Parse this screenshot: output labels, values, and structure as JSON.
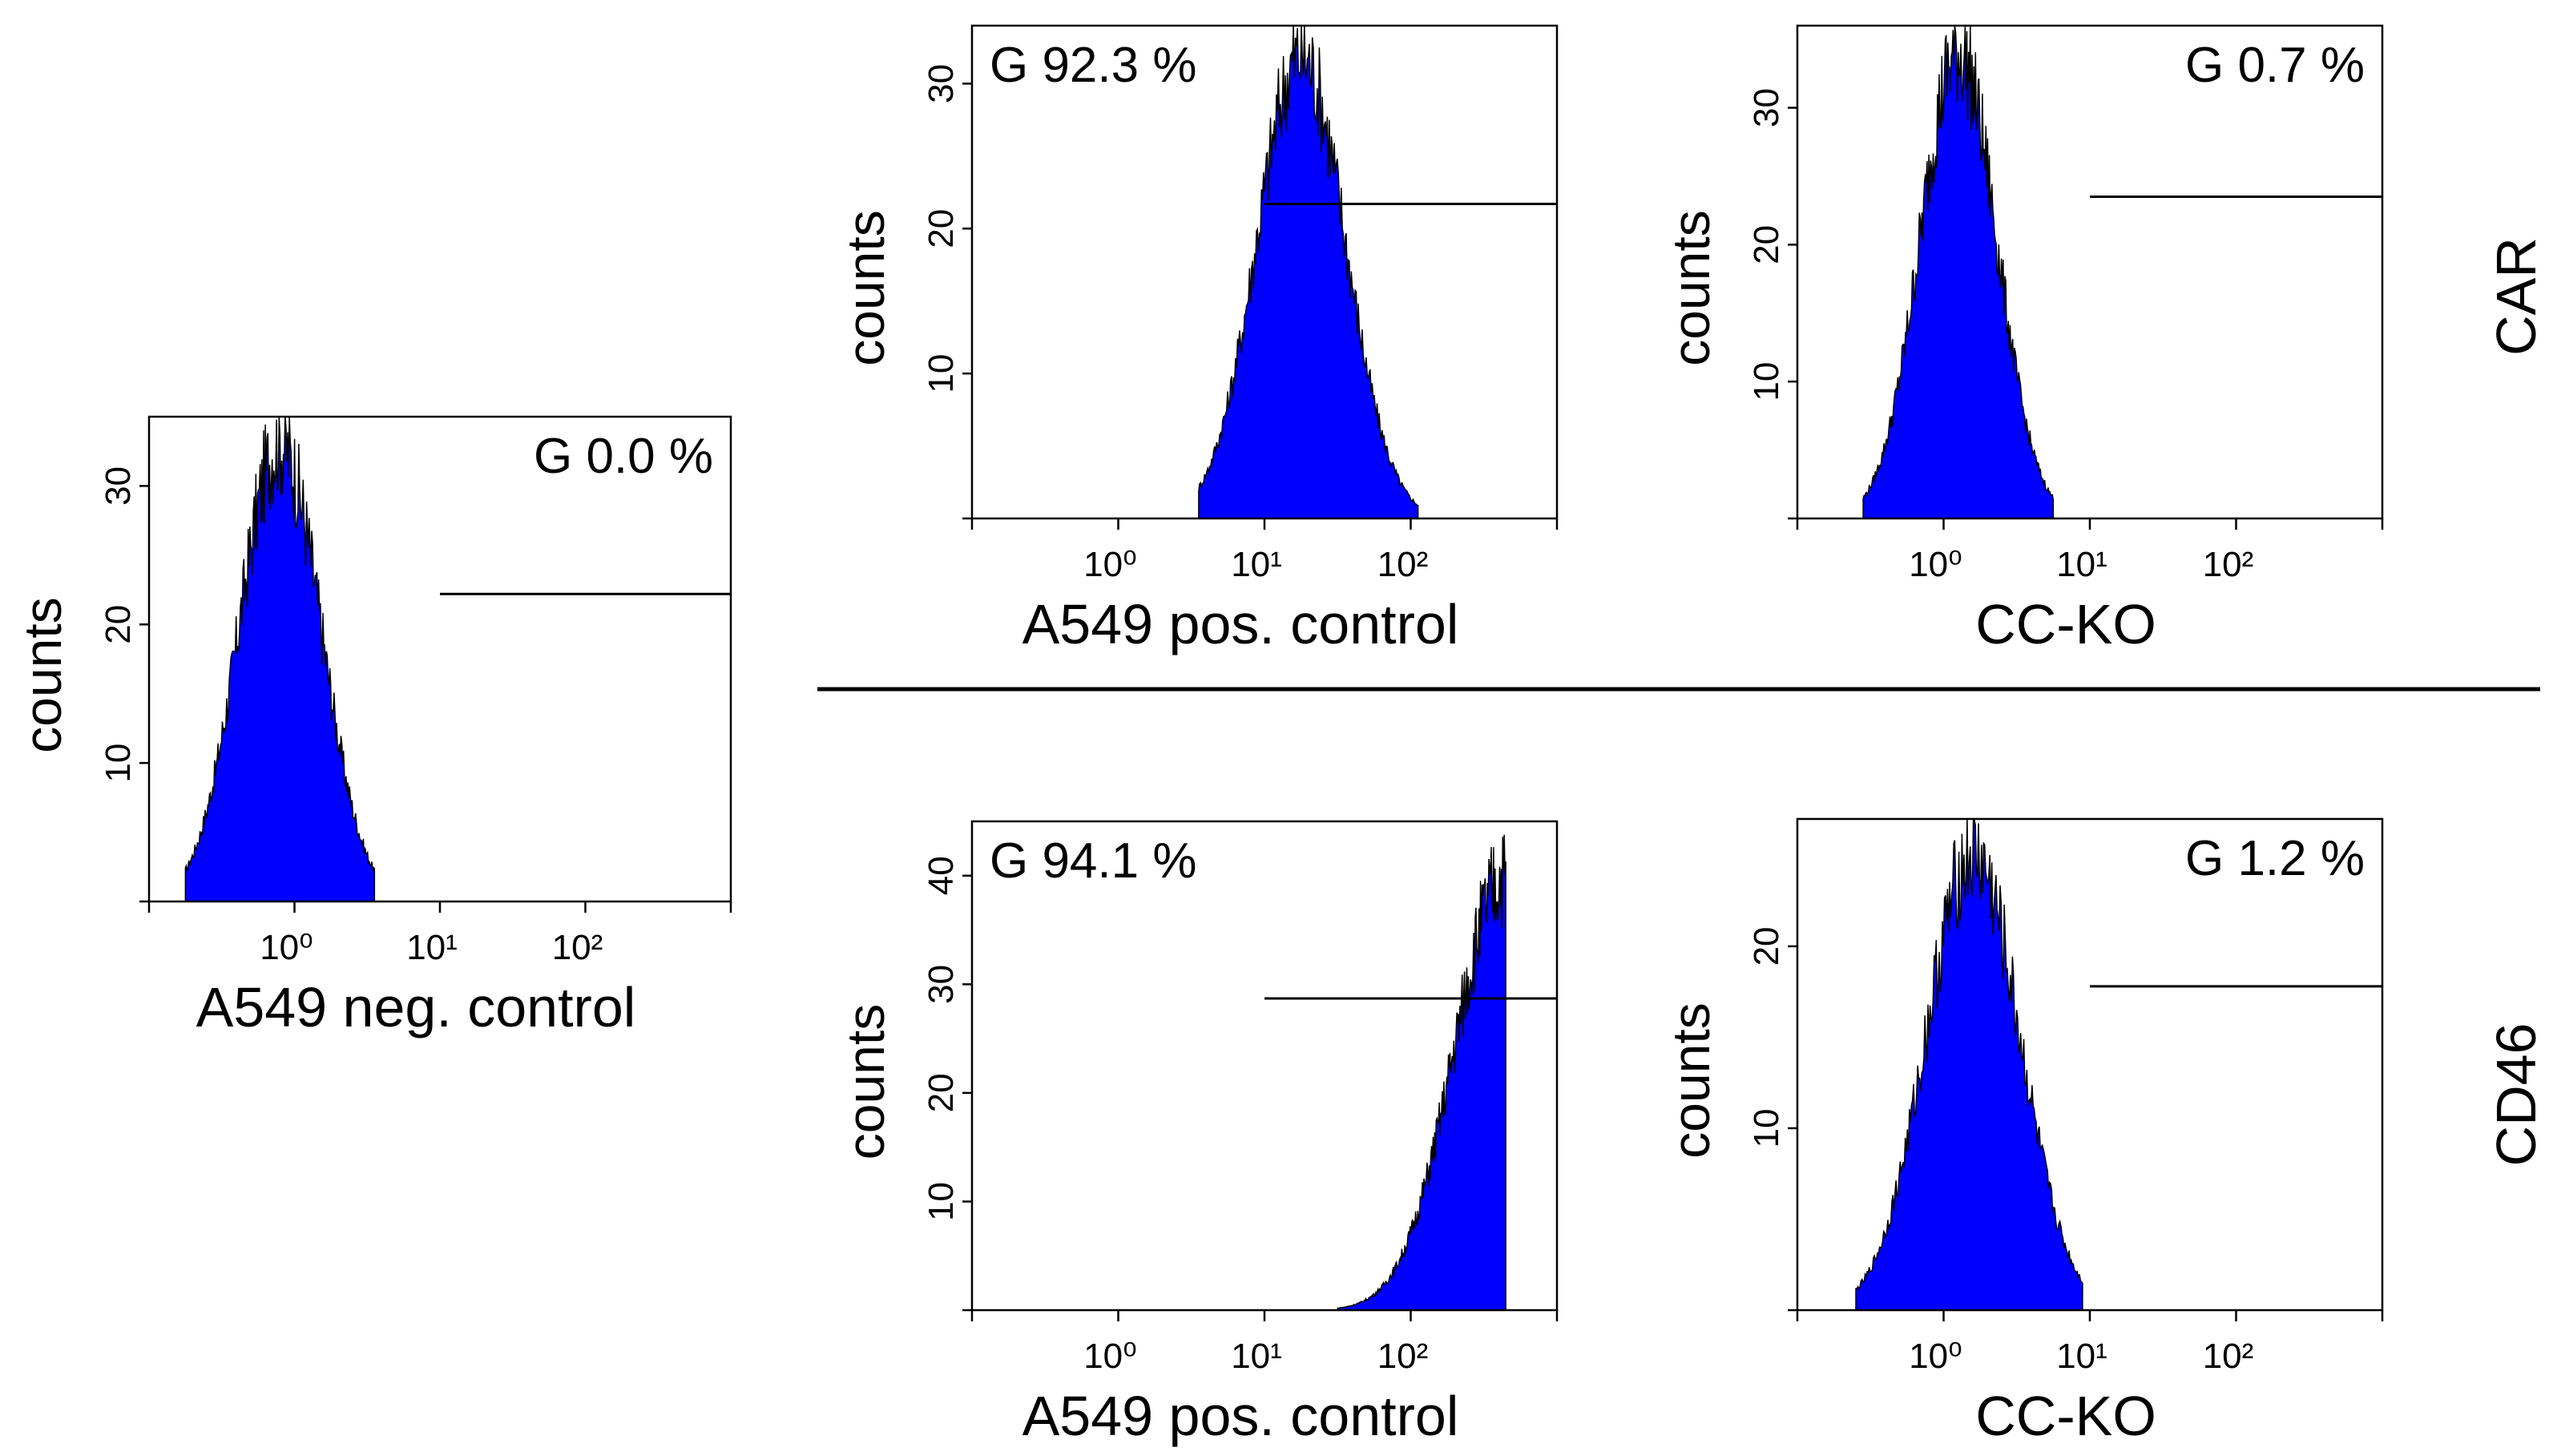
{
  "figure": {
    "row_labels": [
      "CAR",
      "CD46"
    ]
  },
  "colors": {
    "histogram_fill": "#0000ff",
    "outline": "#000000",
    "background": "#ffffff"
  },
  "chart_data": [
    {
      "type": "histogram",
      "id": "neg-control",
      "title": "",
      "xlabel": "A549 neg. control",
      "ylabel": "counts",
      "x_scale": "log10",
      "xlim": [
        -1,
        3
      ],
      "ylim": [
        0,
        35
      ],
      "x_ticks": [
        0,
        1,
        2,
        3
      ],
      "x_tick_labels": [
        "10⁰",
        "10¹",
        "10²",
        ""
      ],
      "y_ticks": [
        10,
        20,
        30
      ],
      "y_tick_labels": [
        "10",
        "20",
        "30"
      ],
      "gate_label": "G 0.0 %",
      "gate_label_position": "top-right",
      "gate": {
        "x_start": 1.0,
        "x_end": 3.0,
        "y": 22.2
      },
      "peak": {
        "center": -0.1,
        "sigma": 0.28,
        "height": 33,
        "xmin": -0.75,
        "xmax": 0.55
      }
    },
    {
      "type": "histogram",
      "id": "car-pos-control",
      "title": "",
      "xlabel": "A549 pos. control",
      "ylabel": "counts",
      "x_scale": "log10",
      "xlim": [
        -1,
        3
      ],
      "ylim": [
        0,
        34
      ],
      "x_ticks": [
        0,
        1,
        2,
        3
      ],
      "x_tick_labels": [
        "10⁰",
        "10¹",
        "10²",
        ""
      ],
      "y_ticks": [
        10,
        20,
        30
      ],
      "y_tick_labels": [
        "10",
        "20",
        "30"
      ],
      "gate_label": "G 92.3 %",
      "gate_label_position": "top-left",
      "gate": {
        "x_start": 1.0,
        "x_end": 3.0,
        "y": 21.7
      },
      "peak": {
        "center": 1.25,
        "sigma": 0.3,
        "height": 32,
        "xmin": 0.55,
        "xmax": 2.05
      }
    },
    {
      "type": "histogram",
      "id": "car-cc-ko",
      "title": "",
      "xlabel": "CC-KO",
      "ylabel": "counts",
      "x_scale": "log10",
      "xlim": [
        -1,
        3
      ],
      "ylim": [
        0,
        36
      ],
      "x_ticks": [
        0,
        1,
        2,
        3
      ],
      "x_tick_labels": [
        "10⁰",
        "10¹",
        "10²",
        ""
      ],
      "y_ticks": [
        10,
        20,
        30
      ],
      "y_tick_labels": [
        "10",
        "20",
        "30"
      ],
      "gate_label": "G 0.7 %",
      "gate_label_position": "top-right",
      "gate": {
        "x_start": 1.0,
        "x_end": 3.0,
        "y": 23.5
      },
      "peak": {
        "center": 0.1,
        "sigma": 0.26,
        "height": 34,
        "xmin": -0.55,
        "xmax": 0.75
      }
    },
    {
      "type": "histogram",
      "id": "cd46-pos-control",
      "title": "",
      "xlabel": "A549 pos. control",
      "ylabel": "counts",
      "x_scale": "log10",
      "xlim": [
        -1,
        3
      ],
      "ylim": [
        0,
        45
      ],
      "x_ticks": [
        0,
        1,
        2,
        3
      ],
      "x_tick_labels": [
        "10⁰",
        "10¹",
        "10²",
        ""
      ],
      "y_ticks": [
        10,
        20,
        30,
        40
      ],
      "y_tick_labels": [
        "10",
        "20",
        "30",
        "40"
      ],
      "gate_label": "G 94.1 %",
      "gate_label_position": "top-left",
      "gate": {
        "x_start": 1.0,
        "x_end": 3.0,
        "y": 28.7
      },
      "peak": {
        "center": 2.65,
        "sigma": 0.35,
        "height": 40,
        "xmin": 1.5,
        "xmax": 2.65
      }
    },
    {
      "type": "histogram",
      "id": "cd46-cc-ko",
      "title": "",
      "xlabel": "CC-KO",
      "ylabel": "counts",
      "x_scale": "log10",
      "xlim": [
        -1,
        3
      ],
      "ylim": [
        0,
        27
      ],
      "x_ticks": [
        0,
        1,
        2,
        3
      ],
      "x_tick_labels": [
        "10⁰",
        "10¹",
        "10²",
        ""
      ],
      "y_ticks": [
        10,
        20
      ],
      "y_tick_labels": [
        "10",
        "20"
      ],
      "gate_label": "G 1.2 %",
      "gate_label_position": "top-right",
      "gate": {
        "x_start": 1.0,
        "x_end": 3.0,
        "y": 17.8
      },
      "peak": {
        "center": 0.2,
        "sigma": 0.32,
        "height": 25,
        "xmin": -0.6,
        "xmax": 0.95
      }
    }
  ]
}
